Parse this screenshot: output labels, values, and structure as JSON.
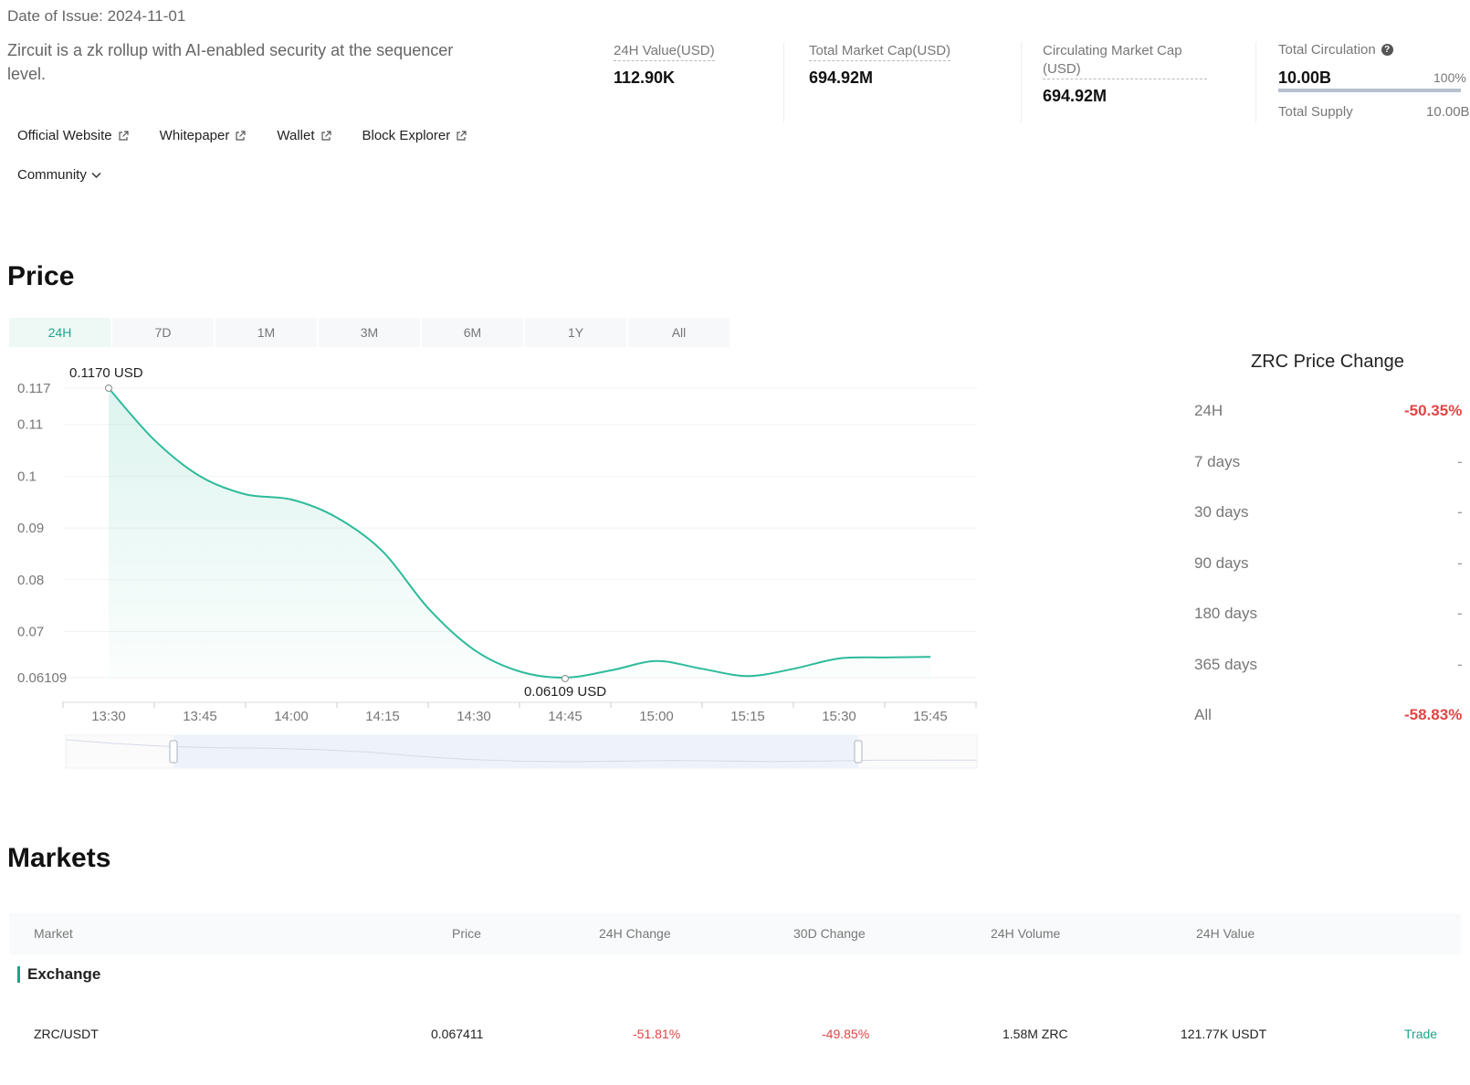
{
  "header": {
    "date_of_issue": "Date of Issue: 2024-11-01",
    "description": "Zircuit is a zk rollup with AI-enabled security at the sequencer level."
  },
  "stats": {
    "value_24h": {
      "label": "24H Value(USD)",
      "value": "112.90K"
    },
    "market_cap": {
      "label": "Total Market Cap(USD)",
      "value": "694.92M"
    },
    "circ_market_cap": {
      "label": "Circulating Market Cap (USD)",
      "value": "694.92M"
    },
    "circulation": {
      "label": "Total Circulation",
      "value": "10.00B",
      "percent": "100%",
      "fill_fraction": 1.0
    },
    "supply": {
      "label": "Total Supply",
      "value": "10.00B"
    }
  },
  "links": {
    "official": "Official Website",
    "whitepaper": "Whitepaper",
    "wallet": "Wallet",
    "explorer": "Block Explorer",
    "community": "Community"
  },
  "price_section": {
    "title": "Price",
    "tabs": [
      "24H",
      "7D",
      "1M",
      "3M",
      "6M",
      "1Y",
      "All"
    ],
    "active_tab": "24H"
  },
  "chart_data": {
    "type": "area",
    "x_ticks": [
      "13:30",
      "13:45",
      "14:00",
      "14:15",
      "14:30",
      "14:45",
      "15:00",
      "15:15",
      "15:30",
      "15:45"
    ],
    "y_ticks": [
      0.117,
      0.11,
      0.1,
      0.09,
      0.08,
      0.07,
      0.06109
    ],
    "y_tick_labels": [
      "0.117",
      "0.11",
      "0.1",
      "0.09",
      "0.08",
      "0.07",
      "0.06109"
    ],
    "ylim": [
      0.06109,
      0.117
    ],
    "x": [
      "13:30",
      "13:37.5",
      "13:45",
      "13:52.5",
      "14:00",
      "14:07.5",
      "14:15",
      "14:22.5",
      "14:30",
      "14:37.5",
      "14:45",
      "14:52.5",
      "15:00",
      "15:07.5",
      "15:15",
      "15:22.5",
      "15:30",
      "15:37.5",
      "15:45"
    ],
    "values": [
      0.117,
      0.107,
      0.1,
      0.0965,
      0.0955,
      0.092,
      0.0855,
      0.0745,
      0.0665,
      0.0623,
      0.0611,
      0.0625,
      0.0643,
      0.0628,
      0.0614,
      0.0628,
      0.0648,
      0.065,
      0.0651
    ],
    "max_label": "0.1170  USD",
    "min_label": "0.06109  USD",
    "line_color": "#2dbb9a",
    "grid": true,
    "x_range": [
      "13:30",
      "15:45"
    ]
  },
  "price_change": {
    "title": "ZRC Price Change",
    "rows": [
      {
        "label": "24H",
        "value": "-50.35%"
      },
      {
        "label": "7 days",
        "value": "-"
      },
      {
        "label": "30 days",
        "value": "-"
      },
      {
        "label": "90 days",
        "value": "-"
      },
      {
        "label": "180 days",
        "value": "-"
      },
      {
        "label": "365 days",
        "value": "-"
      },
      {
        "label": "All",
        "value": "-58.83%"
      }
    ]
  },
  "markets": {
    "title": "Markets",
    "columns": [
      "Market",
      "Price",
      "24H Change",
      "30D Change",
      "24H Volume",
      "24H Value"
    ],
    "section": "Exchange",
    "rows": [
      {
        "market": "ZRC/USDT",
        "price": "0.067411",
        "change_24h": "-51.81%",
        "change_30d": "-49.85%",
        "volume": "1.58M ZRC",
        "value": "121.77K USDT",
        "action": "Trade"
      }
    ]
  },
  "colors": {
    "accent": "#1fa38a",
    "negative": "#e04545"
  }
}
